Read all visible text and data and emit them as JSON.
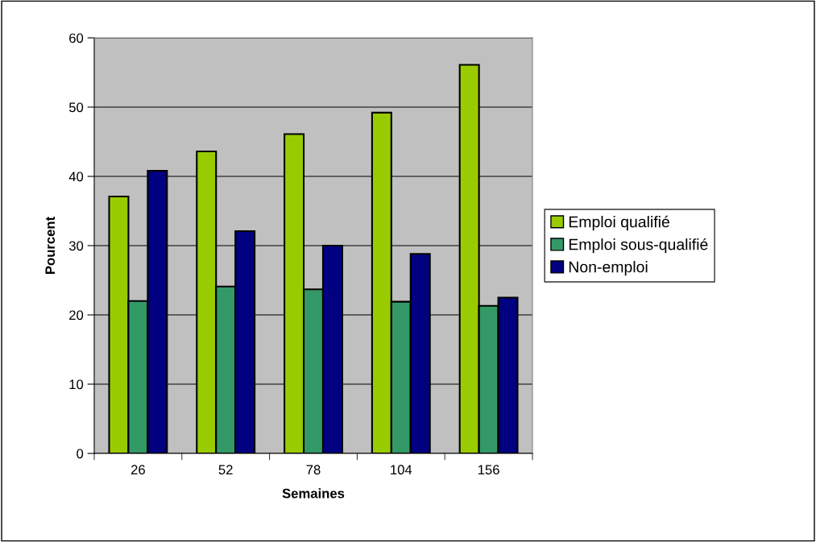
{
  "chart_data": {
    "type": "bar",
    "xlabel": "Semaines",
    "ylabel": "Pourcent",
    "categories": [
      "26",
      "52",
      "78",
      "104",
      "156"
    ],
    "series": [
      {
        "name": "Emploi qualifié",
        "color": "#99cc00",
        "values": [
          37.1,
          43.6,
          46.1,
          49.2,
          56.1
        ]
      },
      {
        "name": "Emploi sous-qualifié",
        "color": "#339966",
        "values": [
          22.0,
          24.1,
          23.7,
          21.9,
          21.3
        ]
      },
      {
        "name": "Non-emploi",
        "color": "#000080",
        "values": [
          40.8,
          32.1,
          30.0,
          28.8,
          22.5
        ]
      }
    ],
    "ylim": [
      0,
      60
    ],
    "yticks": [
      0,
      10,
      20,
      30,
      40,
      50,
      60
    ],
    "grid": "y",
    "legend": "right"
  }
}
